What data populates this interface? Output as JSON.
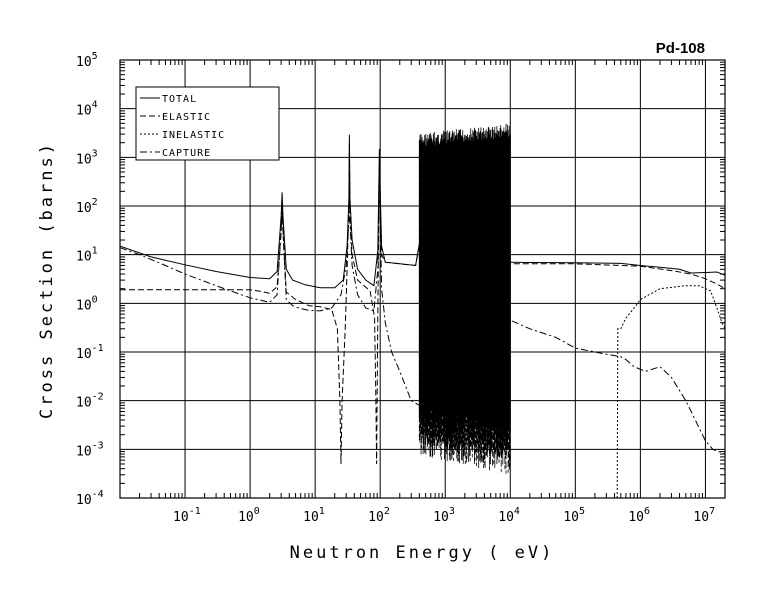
{
  "chart_data": {
    "type": "line",
    "title": "Pd-108",
    "xlabel": "Neutron Energy ( eV)",
    "ylabel": "Cross Section (barns)",
    "xscale": "log",
    "yscale": "log",
    "xlim": [
      0.01,
      20000000
    ],
    "ylim": [
      0.0001,
      100000
    ],
    "grid": true,
    "legend_position": "top-left",
    "x_ticks": [
      {
        "base": "10",
        "exp": "-1",
        "value": 0.1
      },
      {
        "base": "10",
        "exp": "0",
        "value": 1
      },
      {
        "base": "10",
        "exp": "1",
        "value": 10
      },
      {
        "base": "10",
        "exp": "2",
        "value": 100
      },
      {
        "base": "10",
        "exp": "3",
        "value": 1000
      },
      {
        "base": "10",
        "exp": "4",
        "value": 10000
      },
      {
        "base": "10",
        "exp": "5",
        "value": 100000
      },
      {
        "base": "10",
        "exp": "6",
        "value": 1000000
      },
      {
        "base": "10",
        "exp": "7",
        "value": 10000000
      }
    ],
    "y_ticks": [
      {
        "base": "10",
        "exp": "-4",
        "value": 0.0001
      },
      {
        "base": "10",
        "exp": "-3",
        "value": 0.001
      },
      {
        "base": "10",
        "exp": "-2",
        "value": 0.01
      },
      {
        "base": "10",
        "exp": "-1",
        "value": 0.1
      },
      {
        "base": "10",
        "exp": "0",
        "value": 1
      },
      {
        "base": "10",
        "exp": "1",
        "value": 10
      },
      {
        "base": "10",
        "exp": "2",
        "value": 100
      },
      {
        "base": "10",
        "exp": "3",
        "value": 1000
      },
      {
        "base": "10",
        "exp": "4",
        "value": 10000
      },
      {
        "base": "10",
        "exp": "5",
        "value": 100000
      }
    ],
    "series": [
      {
        "name": "TOTAL",
        "dash": "solid",
        "points": [
          [
            0.01,
            15
          ],
          [
            0.03,
            9
          ],
          [
            0.1,
            6.2
          ],
          [
            0.3,
            4.5
          ],
          [
            1,
            3.4
          ],
          [
            2,
            3.2
          ],
          [
            2.6,
            4.5
          ],
          [
            3.0,
            60
          ],
          [
            3.1,
            190
          ],
          [
            3.2,
            60
          ],
          [
            3.6,
            5
          ],
          [
            4.5,
            3
          ],
          [
            7,
            2.4
          ],
          [
            12,
            2.1
          ],
          [
            20,
            2.1
          ],
          [
            27,
            3
          ],
          [
            31,
            15
          ],
          [
            33,
            150
          ],
          [
            33.6,
            2900
          ],
          [
            34.2,
            150
          ],
          [
            37,
            20
          ],
          [
            45,
            5
          ],
          [
            60,
            3
          ],
          [
            80,
            2.3
          ],
          [
            92,
            12
          ],
          [
            96,
            450
          ],
          [
            97.3,
            1500
          ],
          [
            98.5,
            450
          ],
          [
            105,
            15
          ],
          [
            120,
            7
          ],
          [
            200,
            6.5
          ],
          [
            350,
            6
          ],
          [
            440,
            35
          ],
          [
            460,
            4
          ],
          [
            490,
            5
          ],
          [
            520,
            2.3
          ],
          [
            580,
            4
          ],
          [
            640,
            3
          ],
          [
            720,
            40
          ],
          [
            760,
            3
          ],
          [
            850,
            3.5
          ],
          [
            1000,
            3
          ],
          [
            1100,
            8
          ],
          [
            1200,
            2.2
          ],
          [
            1400,
            5
          ],
          [
            1600,
            3
          ],
          [
            1750,
            6
          ],
          [
            1900,
            3
          ],
          [
            2100,
            5
          ],
          [
            2400,
            3
          ],
          [
            3000,
            7
          ],
          [
            4000,
            3
          ],
          [
            5000,
            6
          ],
          [
            6500,
            4
          ],
          [
            8500,
            7
          ],
          [
            10000,
            7
          ],
          [
            20000,
            6.9
          ],
          [
            100000,
            6.8
          ],
          [
            500000,
            6.6
          ],
          [
            1000000,
            6
          ],
          [
            2000000,
            5.5
          ],
          [
            4000000,
            5
          ],
          [
            6000000,
            4.2
          ],
          [
            10000000,
            4.3
          ],
          [
            15000000,
            4.4
          ],
          [
            20000000,
            3.8
          ]
        ]
      },
      {
        "name": "ELASTIC",
        "dash": "dashed",
        "points": [
          [
            0.01,
            1.9
          ],
          [
            1,
            1.9
          ],
          [
            1.5,
            1.75
          ],
          [
            2,
            1.6
          ],
          [
            2.6,
            2.2
          ],
          [
            3.0,
            30
          ],
          [
            3.1,
            80
          ],
          [
            3.2,
            30
          ],
          [
            3.6,
            1.7
          ],
          [
            5,
            1.2
          ],
          [
            8,
            0.9
          ],
          [
            12,
            0.85
          ],
          [
            18,
            0.75
          ],
          [
            22,
            0.3
          ],
          [
            24,
            0.01
          ],
          [
            25,
            0.0005
          ],
          [
            26,
            0.01
          ],
          [
            29,
            0.3
          ],
          [
            31,
            5
          ],
          [
            33,
            100
          ],
          [
            33.6,
            2000
          ],
          [
            34.2,
            100
          ],
          [
            37,
            10
          ],
          [
            45,
            3
          ],
          [
            70,
            1.8
          ],
          [
            82,
            0.5
          ],
          [
            86,
            0.01
          ],
          [
            88,
            0.0005
          ],
          [
            92,
            0.5
          ],
          [
            96,
            300
          ],
          [
            97.3,
            1000
          ],
          [
            98.5,
            300
          ],
          [
            105,
            10
          ],
          [
            120,
            7
          ],
          [
            200,
            6.5
          ],
          [
            350,
            6
          ],
          [
            440,
            30
          ],
          [
            460,
            3
          ],
          [
            500,
            4
          ],
          [
            1000,
            3
          ],
          [
            2000,
            5
          ],
          [
            5000,
            4
          ],
          [
            10000,
            6.5
          ],
          [
            100000,
            6.5
          ],
          [
            1000000,
            5.8
          ],
          [
            3000000,
            4.7
          ],
          [
            6000000,
            4
          ],
          [
            10000000,
            3.2
          ],
          [
            15000000,
            2.5
          ],
          [
            20000000,
            2
          ]
        ]
      },
      {
        "name": "INELASTIC",
        "dash": "dotted",
        "points": [
          [
            440000,
            0.0001
          ],
          [
            450000,
            0.3
          ],
          [
            500000,
            0.3
          ],
          [
            600000,
            0.5
          ],
          [
            800000,
            0.8
          ],
          [
            1000000,
            1.2
          ],
          [
            2000000,
            2
          ],
          [
            5000000,
            2.3
          ],
          [
            8000000,
            2.3
          ],
          [
            12000000,
            1.8
          ],
          [
            15000000,
            0.8
          ],
          [
            18000000,
            0.4
          ],
          [
            20000000,
            0.3
          ]
        ]
      },
      {
        "name": "CAPTURE",
        "dash": "dashdot",
        "points": [
          [
            0.01,
            14
          ],
          [
            0.02,
            10
          ],
          [
            0.05,
            6
          ],
          [
            0.1,
            4
          ],
          [
            0.3,
            2.3
          ],
          [
            0.5,
            1.8
          ],
          [
            1,
            1.3
          ],
          [
            2,
            1.05
          ],
          [
            2.6,
            1.5
          ],
          [
            3.0,
            30
          ],
          [
            3.1,
            110
          ],
          [
            3.2,
            30
          ],
          [
            3.6,
            1.2
          ],
          [
            4.5,
            0.9
          ],
          [
            6,
            0.78
          ],
          [
            8,
            0.72
          ],
          [
            12,
            0.7
          ],
          [
            18,
            0.8
          ],
          [
            25,
            1.5
          ],
          [
            30,
            6
          ],
          [
            33,
            50
          ],
          [
            33.6,
            900
          ],
          [
            34.2,
            50
          ],
          [
            37,
            6
          ],
          [
            45,
            1.5
          ],
          [
            60,
            0.8
          ],
          [
            80,
            0.7
          ],
          [
            92,
            5
          ],
          [
            96,
            150
          ],
          [
            97.3,
            500
          ],
          [
            98.5,
            150
          ],
          [
            105,
            2
          ],
          [
            120,
            0.4
          ],
          [
            150,
            0.1
          ],
          [
            200,
            0.04
          ],
          [
            300,
            0.01
          ],
          [
            400,
            0.008
          ],
          [
            600,
            0.015
          ],
          [
            1000,
            0.05
          ],
          [
            2000,
            0.1
          ],
          [
            4000,
            0.3
          ],
          [
            8000,
            0.4
          ],
          [
            10000,
            0.45
          ],
          [
            20000,
            0.3
          ],
          [
            50000,
            0.2
          ],
          [
            100000,
            0.12
          ],
          [
            300000,
            0.09
          ],
          [
            500000,
            0.08
          ],
          [
            600000,
            0.07
          ],
          [
            800000,
            0.05
          ],
          [
            1200000,
            0.04
          ],
          [
            2000000,
            0.05
          ],
          [
            3000000,
            0.03
          ],
          [
            5000000,
            0.01
          ],
          [
            7000000,
            0.004
          ],
          [
            10000000,
            0.0015
          ],
          [
            13000000,
            0.001
          ],
          [
            20000000,
            0.0008
          ]
        ]
      }
    ],
    "resonance_regions": [
      {
        "series": "TOTAL",
        "x_start": 400,
        "x_end": 10000,
        "y_low": 0.001,
        "y_high": 5000
      },
      {
        "series": "ELASTIC",
        "x_start": 400,
        "x_end": 10000,
        "y_low": 0.0003,
        "y_high": 3000
      }
    ]
  }
}
